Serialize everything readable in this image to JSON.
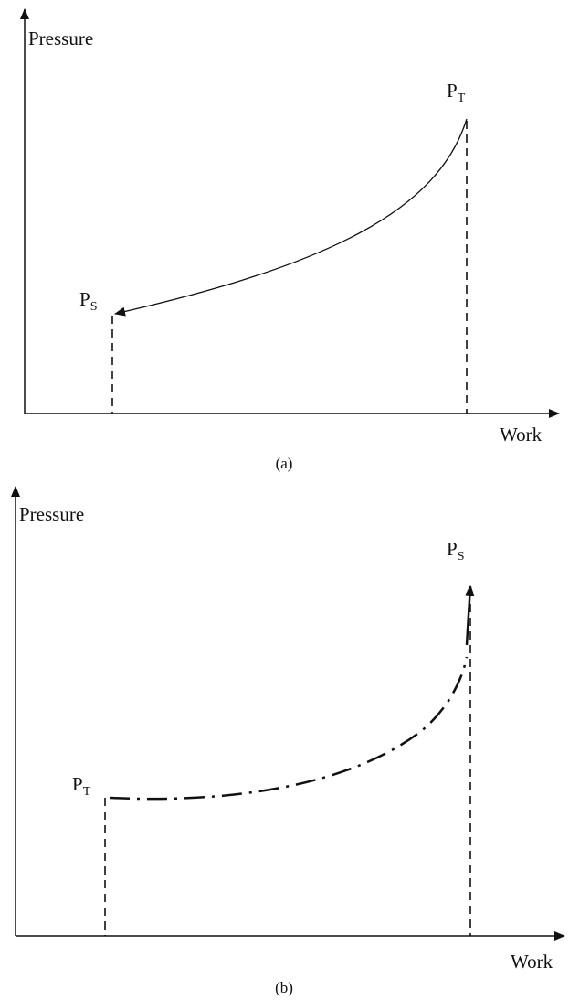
{
  "panels": [
    {
      "y_label": "Pressure",
      "x_label": "Work",
      "start_label": {
        "main": "P",
        "sub": "T"
      },
      "end_label": {
        "main": "P",
        "sub": "S"
      },
      "caption": "(a)"
    },
    {
      "y_label": "Pressure",
      "x_label": "Work",
      "start_label": {
        "main": "P",
        "sub": "T"
      },
      "end_label": {
        "main": "P",
        "sub": "S"
      },
      "caption": "(b)"
    }
  ]
}
